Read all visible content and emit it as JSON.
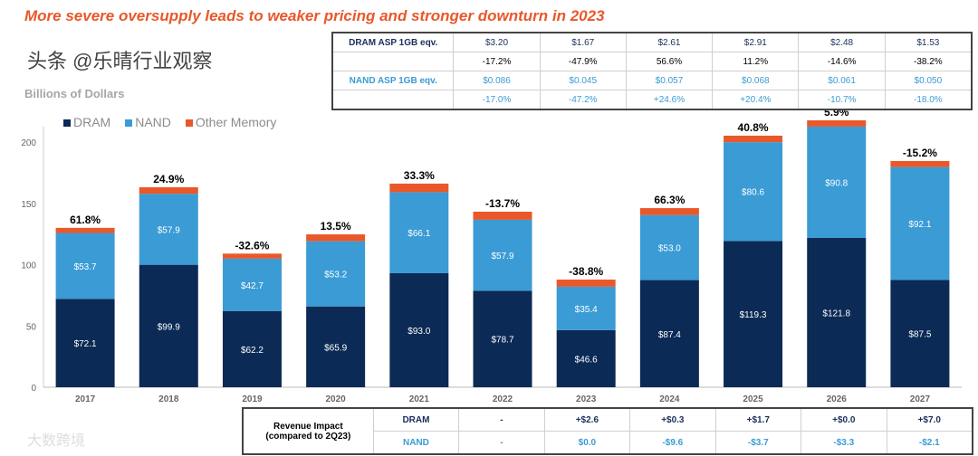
{
  "title": "More severe oversupply leads to weaker pricing and stronger downturn in 2023",
  "colors": {
    "dram": "#0b2a55",
    "nand": "#3a9bd5",
    "other": "#e8582a"
  },
  "asp_table": {
    "rows": [
      {
        "label": "DRAM ASP 1GB eqv.",
        "values": [
          "$3.20",
          "$1.67",
          "$2.61",
          "$2.91",
          "$2.48",
          "$1.53"
        ],
        "class": "navy"
      },
      {
        "label": "",
        "values": [
          "-17.2%",
          "-47.9%",
          "56.6%",
          "11.2%",
          "-14.6%",
          "-38.2%"
        ],
        "class": ""
      },
      {
        "label": "NAND ASP 1GB eqv.",
        "values": [
          "$0.086",
          "$0.045",
          "$0.057",
          "$0.068",
          "$0.061",
          "$0.050"
        ],
        "class": "blue"
      },
      {
        "label": "",
        "values": [
          "-17.0%",
          "-47.2%",
          "+24.6%",
          "+20.4%",
          "-10.7%",
          "-18.0%"
        ],
        "class": "blue"
      }
    ]
  },
  "impact_table": {
    "label": "Revenue Impact",
    "sublabel": "(compared to 2Q23)",
    "rows": [
      {
        "category": "DRAM",
        "values": [
          "-",
          "+$2.6",
          "+$0.3",
          "+$1.7",
          "+$0.0",
          "+$7.0"
        ]
      },
      {
        "category": "NAND",
        "values": [
          "-",
          "$0.0",
          "-$9.6",
          "-$3.7",
          "-$3.3",
          "-$2.1"
        ]
      }
    ]
  },
  "watermark": "头条 @乐晴行业观察",
  "watermark2": "大数跨境",
  "chart_data": {
    "type": "bar",
    "stacked": true,
    "title": "",
    "ylabel": "Billions of Dollars",
    "ylim": [
      0,
      200
    ],
    "yticks": [
      "0",
      "50",
      "100",
      "150",
      "200"
    ],
    "legend": [
      "DRAM",
      "NAND",
      "Other Memory"
    ],
    "legend_position": "top-left",
    "categories": [
      "2017",
      "2018",
      "2019",
      "2020",
      "2021",
      "2022",
      "2023",
      "2024",
      "2025",
      "2026",
      "2027"
    ],
    "series": [
      {
        "name": "DRAM",
        "values": [
          72.1,
          99.9,
          62.2,
          65.9,
          93.0,
          78.7,
          46.6,
          87.4,
          119.3,
          121.8,
          87.5
        ],
        "labels": [
          "$72.1",
          "$99.9",
          "$62.2",
          "$65.9",
          "$93.0",
          "$78.7",
          "$46.6",
          "$87.4",
          "$119.3",
          "$121.8",
          "$87.5"
        ]
      },
      {
        "name": "NAND",
        "values": [
          53.7,
          57.9,
          42.7,
          53.2,
          66.1,
          57.9,
          35.4,
          53.0,
          80.6,
          90.8,
          92.1
        ],
        "labels": [
          "$53.7",
          "$57.9",
          "$42.7",
          "$53.2",
          "$66.1",
          "$57.9",
          "$35.4",
          "$53.0",
          "$80.6",
          "$90.8",
          "$92.1"
        ]
      },
      {
        "name": "Other Memory",
        "values": [
          4.2,
          5.3,
          4.1,
          5.6,
          7.0,
          6.6,
          5.8,
          5.7,
          5.3,
          5.1,
          4.9
        ]
      }
    ],
    "growth_labels": [
      "61.8%",
      "24.9%",
      "-32.6%",
      "13.5%",
      "33.3%",
      "-13.7%",
      "-38.8%",
      "66.3%",
      "40.8%",
      "5.9%",
      "-15.2%"
    ]
  }
}
